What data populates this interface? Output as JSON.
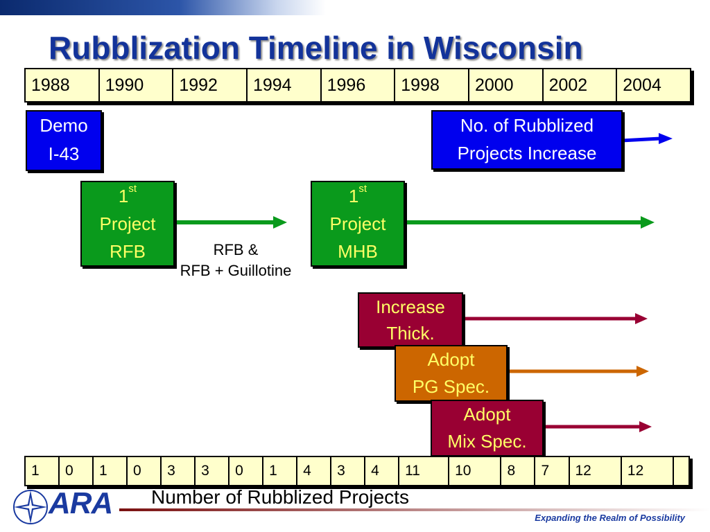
{
  "title": "Rubblization Timeline in Wisconsin",
  "years": [
    "1988",
    "1990",
    "1992",
    "1994",
    "1996",
    "1998",
    "2000",
    "2002",
    "2004"
  ],
  "boxes": {
    "demo": {
      "line1": "Demo",
      "line2": "I-43"
    },
    "increase_projects": {
      "line1": "No. of Rubblized",
      "line2": "Projects Increase"
    },
    "first_rfb": {
      "num": "1",
      "sup": "st",
      "line2": "Project",
      "line3": "RFB"
    },
    "first_mhb": {
      "num": "1",
      "sup": "st",
      "line2": "Project",
      "line3": "MHB"
    },
    "increase_thick": {
      "line1": "Increase",
      "line2": "Thick."
    },
    "pg_spec": {
      "line1": "Adopt",
      "line2": "PG Spec."
    },
    "mix_spec": {
      "line1": "Adopt",
      "line2": "Mix Spec."
    }
  },
  "rfb_label": {
    "line1": "RFB &",
    "line2": "RFB + Guillotine"
  },
  "counts": [
    "1",
    "0",
    "1",
    "0",
    "3",
    "3",
    "0",
    "1",
    "4",
    "3",
    "4",
    "11",
    "10",
    "8",
    "7",
    "12",
    "12",
    ""
  ],
  "caption": "Number of Rubblized Projects",
  "logo": {
    "text": "ARA",
    "icon": "compass-star-icon"
  },
  "tagline": "Expanding the Realm of Possibility",
  "colors": {
    "blue": "#0000ee",
    "green": "#0a9a1c",
    "maroon": "#990033",
    "orange": "#cc6600",
    "cell": "#ffffcc"
  }
}
